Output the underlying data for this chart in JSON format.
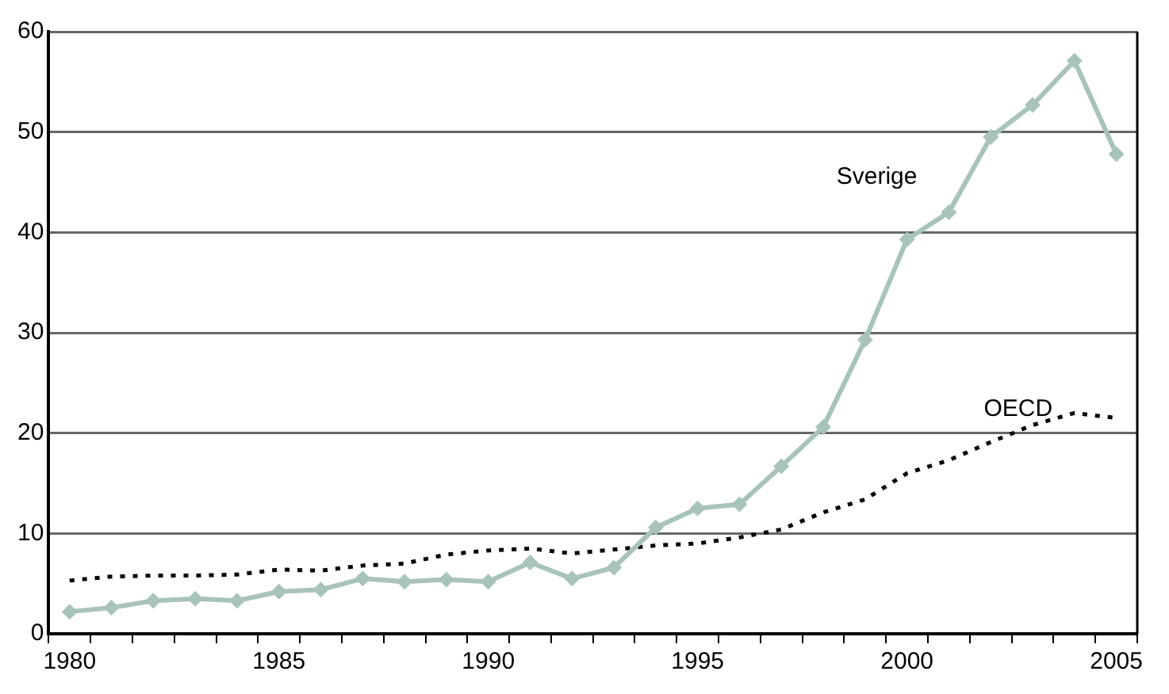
{
  "chart_data": {
    "type": "line",
    "categories": [
      "1980",
      null,
      null,
      null,
      null,
      "1985",
      null,
      null,
      null,
      null,
      "1990",
      null,
      null,
      null,
      null,
      "1995",
      null,
      null,
      null,
      null,
      "2000",
      null,
      null,
      null,
      null,
      "2005"
    ],
    "series": [
      {
        "name": "Sverige",
        "color": "#a8c4b8",
        "marker": "diamond",
        "line_style": "solid",
        "values": [
          2.2,
          2.6,
          3.3,
          3.5,
          3.3,
          4.2,
          4.4,
          5.5,
          5.2,
          5.4,
          5.2,
          7.1,
          5.5,
          6.6,
          10.6,
          12.5,
          12.9,
          16.7,
          20.6,
          29.3,
          39.3,
          42,
          49.5,
          52.7,
          57.1,
          47.8
        ]
      },
      {
        "name": "OECD",
        "color": "#000000",
        "marker": "none",
        "line_style": "dotted",
        "values": [
          5.3,
          5.7,
          5.8,
          5.8,
          5.9,
          6.4,
          6.3,
          6.8,
          7.0,
          7.9,
          8.3,
          8.5,
          8.0,
          8.4,
          8.8,
          9.0,
          9.6,
          10.4,
          12.1,
          13.4,
          16,
          17.3,
          19.1,
          20.8,
          22.0,
          21.5
        ]
      }
    ],
    "ylim": [
      0,
      60
    ],
    "yticks": [
      0,
      10,
      20,
      30,
      40,
      50,
      60
    ],
    "grid": "y",
    "legend": false
  }
}
